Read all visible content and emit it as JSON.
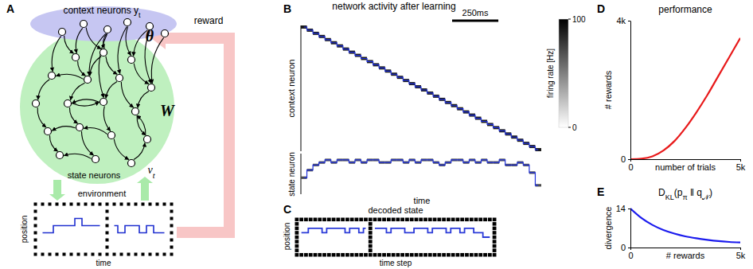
{
  "diagram": {
    "panel_label": "A",
    "context_label": [
      "context neurons y",
      "t"
    ],
    "state_label": "state neurons",
    "state_symbol": [
      "ν",
      "t"
    ],
    "weights": "W",
    "readout": "θ",
    "reward": "reward",
    "environment": {
      "title": "environment",
      "xlabel": "time",
      "ylabel": "position",
      "xlim": [
        0,
        20
      ],
      "ylim": [
        0,
        8
      ],
      "boundary": 10,
      "trajectory": [
        null,
        3,
        3,
        4,
        4,
        4,
        5,
        4,
        4,
        4,
        null,
        4,
        3,
        4,
        4,
        3,
        4,
        3,
        3,
        null
      ]
    }
  },
  "chart_data": [
    {
      "type": "raster",
      "panel_label": "B",
      "title": "network activity after learning",
      "ylabel": "context neuron",
      "ylabel2": "state neuron",
      "xlabel": "time",
      "xlim": [
        0,
        1300
      ],
      "bin_width": 32.5,
      "scale_bar": {
        "value": 250,
        "label": "250ms"
      },
      "ylim": [
        0,
        40
      ],
      "y2lim": [
        0,
        16
      ],
      "context_active": [
        0,
        1,
        2,
        3,
        4,
        5,
        6,
        7,
        8,
        9,
        10,
        11,
        12,
        13,
        14,
        15,
        16,
        17,
        18,
        19,
        20,
        21,
        22,
        23,
        24,
        25,
        26,
        27,
        28,
        29,
        30,
        31,
        32,
        33,
        34,
        35,
        36,
        37,
        38,
        39
      ],
      "context_rate": 90,
      "state_active": [
        6,
        9,
        11,
        12,
        13,
        12,
        13,
        13,
        12,
        13,
        12,
        13,
        13,
        12,
        12,
        13,
        13,
        12,
        13,
        12,
        13,
        13,
        12,
        11,
        12,
        13,
        13,
        12,
        13,
        12,
        13,
        12,
        12,
        13,
        11,
        11,
        12,
        11,
        8,
        3
      ],
      "state_rate": 70,
      "color": "#2233dd",
      "colorbar": {
        "label": "firing rate [Hz]",
        "lim": [
          0,
          100
        ],
        "ticks": [
          0,
          100
        ]
      }
    },
    {
      "type": "grid_line",
      "panel_label": "C",
      "title": "decoded state",
      "xlabel": "time step",
      "ylabel": "position",
      "xlim": [
        0,
        44
      ],
      "ylim": [
        0,
        9
      ],
      "episode_boundary": 16,
      "color": "#2a3ad8",
      "values": [
        null,
        5,
        5,
        6,
        6,
        6,
        5,
        6,
        6,
        6,
        6,
        5,
        6,
        6,
        5,
        6,
        null,
        6,
        6,
        6,
        5,
        6,
        6,
        6,
        5,
        5,
        6,
        6,
        6,
        5,
        6,
        6,
        6,
        5,
        6,
        6,
        5,
        6,
        6,
        5,
        5,
        4,
        4,
        null
      ]
    },
    {
      "type": "line",
      "panel_label": "D",
      "title": "performance",
      "xlabel": "number of trials",
      "ylabel": "# rewards",
      "x": [
        0,
        500,
        1000,
        1500,
        2000,
        2500,
        3000,
        3500,
        4000,
        4500,
        5000
      ],
      "values": [
        0,
        15,
        80,
        250,
        520,
        900,
        1350,
        1850,
        2400,
        2950,
        3500
      ],
      "color": "#e8191a",
      "xlim": [
        0,
        5000
      ],
      "ylim": [
        0,
        4000
      ],
      "xticks": [
        0,
        {
          "value": 5000,
          "label": "5k"
        }
      ],
      "yticks": [
        0,
        {
          "value": 4000,
          "label": "4k"
        }
      ]
    },
    {
      "type": "line",
      "panel_label": "E",
      "title": [
        "D",
        "KL",
        "(p",
        "π",
        " ‖ q",
        "𝒩",
        ")"
      ],
      "xlabel": "# rewards",
      "ylabel": "divergence",
      "x": [
        0,
        500,
        1000,
        1500,
        2000,
        2500,
        3000,
        3500,
        4000,
        4500,
        5000
      ],
      "values": [
        14,
        10.6,
        8.1,
        6.3,
        5,
        4,
        3.3,
        2.75,
        2.3,
        2,
        1.8
      ],
      "color": "#1a1aee",
      "xlim": [
        0,
        5000
      ],
      "ylim": [
        0,
        14
      ],
      "xticks": [
        0,
        {
          "value": 5000,
          "label": "5k"
        }
      ],
      "yticks": [
        0,
        14
      ]
    }
  ]
}
